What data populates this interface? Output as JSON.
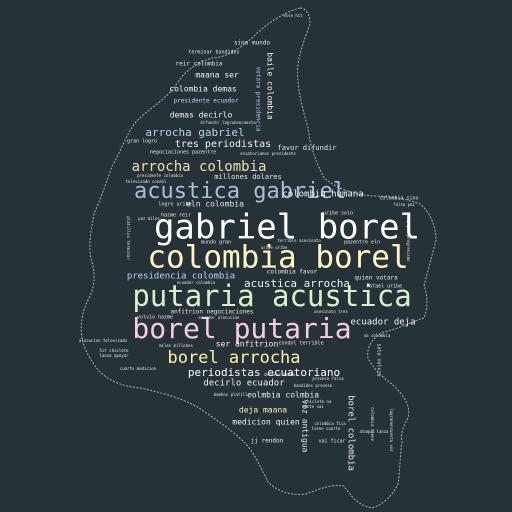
{
  "colors": {
    "background": "#263238",
    "outline": "#a9b4b8"
  },
  "words": [
    {
      "text": "gabriel borel",
      "color": "#ffffff"
    },
    {
      "text": "colombia borel",
      "color": "#fff6c4"
    },
    {
      "text": "putaria acustica",
      "color": "#d6f2c8"
    },
    {
      "text": "borel putaria",
      "color": "#f6cde0"
    },
    {
      "text": "acustica gabriel",
      "color": "#a9bfd4"
    },
    {
      "text": "borel arrocha",
      "color": "#fbf3a6"
    },
    {
      "text": "arrocha colombia",
      "color": "#e9e0b4"
    },
    {
      "text": "arrocha gabriel",
      "color": "#b7d2e6"
    },
    {
      "text": "acustica arrocha",
      "color": "#f1f1f1"
    },
    {
      "text": "presidencia colombia",
      "color": "#b9d8ee"
    },
    {
      "text": "periodistas ecuatoriano",
      "color": "#ffffff"
    },
    {
      "text": "tres periodistas",
      "color": "#f1f1f1"
    },
    {
      "text": "colombia humana",
      "color": "#f3f3f3"
    },
    {
      "text": "eln colombia",
      "color": "#e8e8e8"
    },
    {
      "text": "ser anfitrion",
      "color": "#f3f3f3"
    },
    {
      "text": "ecuador deja",
      "color": "#f3f3f3"
    },
    {
      "text": "decirlo ecuador",
      "color": "#f1f1f1"
    },
    {
      "text": "colmbia colmbia",
      "color": "#f1f1f1"
    },
    {
      "text": "deja maana",
      "color": "#fbefc0"
    },
    {
      "text": "medicion quien",
      "color": "#f3f3f3"
    },
    {
      "text": "colombia demas",
      "color": "#f3f3f3"
    },
    {
      "text": "maana ser",
      "color": "#f3f3f3"
    },
    {
      "text": "demas decirlo",
      "color": "#f3f3f3"
    },
    {
      "text": "baile colombia",
      "color": "#f3f3f3"
    },
    {
      "text": "borel colombia",
      "color": "#e8e8e8"
    },
    {
      "text": "voz antigua",
      "color": "#e8e8e8"
    },
    {
      "text": "favor difundir",
      "color": "#e6e6e6"
    },
    {
      "text": "millones dolares",
      "color": "#e6e6e6"
    },
    {
      "text": "colombia favor",
      "color": "#e6e6e6"
    },
    {
      "text": "quien votara",
      "color": "#e6e6e6"
    },
    {
      "text": "anfitrion negociaciones",
      "color": "#e6e6e6"
    },
    {
      "text": "presidente ecuador",
      "color": "#b7d2e6"
    },
    {
      "text": "sino mundo",
      "color": "#e6e6e6"
    },
    {
      "text": "reir colombia",
      "color": "#e6e6e6"
    },
    {
      "text": "votara presidencia",
      "color": "#b7d2e6"
    },
    {
      "text": "terminar bandidos",
      "color": "#e6e6e6"
    },
    {
      "text": "gran logro",
      "color": "#e6e6e6"
    },
    {
      "text": "logro uribe",
      "color": "#e6e6e6"
    },
    {
      "text": "hazme reir",
      "color": "#e6e6e6"
    },
    {
      "text": "uribe solo",
      "color": "#e6e6e6"
    },
    {
      "text": "colombia sino",
      "color": "#e6e6e6"
    },
    {
      "text": "mundo gran",
      "color": "#e6e6e6"
    },
    {
      "text": "pazentre eln",
      "color": "#e6e6e6"
    },
    {
      "text": "volvio hazme",
      "color": "#e6e6e6"
    },
    {
      "text": "condol terrible",
      "color": "#e6e6e6"
    },
    {
      "text": "solo volvio",
      "color": "#e6e6e6"
    },
    {
      "text": "rafael uribe",
      "color": "#e6e6e6"
    },
    {
      "text": "jj rendon",
      "color": "#e6e6e6"
    },
    {
      "text": "vai ficar",
      "color": "#e6e6e6"
    },
    {
      "text": "esse hit",
      "color": "#e6e6e6"
    },
    {
      "text": "negociaciones pazentre",
      "color": "#e6e6e6"
    },
    {
      "text": "presidente colombia",
      "color": "#e6e6e6"
    },
    {
      "text": "ecuatorianos presidente",
      "color": "#e6e6e6"
    },
    {
      "text": "difundir lagranencuesta",
      "color": "#e6e6e6"
    },
    {
      "text": "televisado condol",
      "color": "#e6e6e6"
    },
    {
      "text": "terrible asesinato",
      "color": "#e6e6e6"
    },
    {
      "text": "uribe uribe",
      "color": "#e6e6e6"
    },
    {
      "text": "paz miles",
      "color": "#e6e6e6"
    },
    {
      "text": "falsa paz",
      "color": "#e6e6e6"
    },
    {
      "text": "apoyar progresismo",
      "color": "#e6e6e6"
    },
    {
      "text": "platillos terminar",
      "color": "#e6e6e6"
    },
    {
      "text": "ecuador colombia",
      "color": "#e6e6e6"
    },
    {
      "text": "ecuador alocucion",
      "color": "#e6e6e6"
    },
    {
      "text": "asesinato tres",
      "color": "#e6e6e6"
    },
    {
      "text": "alocucion televisado",
      "color": "#e6e6e6"
    },
    {
      "text": "hit chiclete",
      "color": "#e6e6e6"
    },
    {
      "text": "lanza apoyar",
      "color": "#e6e6e6"
    },
    {
      "text": "miles millones",
      "color": "#e6e6e6"
    },
    {
      "text": "cuarto medicion",
      "color": "#e6e6e6"
    },
    {
      "text": "proceso falsa",
      "color": "#e6e6e6"
    },
    {
      "text": "bandidos proceso",
      "color": "#e6e6e6"
    },
    {
      "text": "dolares bombos",
      "color": "#e6e6e6"
    },
    {
      "text": "bombos platillos",
      "color": "#e6e6e6"
    },
    {
      "text": "chiclete na",
      "color": "#e6e6e6"
    },
    {
      "text": "mente vai",
      "color": "#e6e6e6"
    },
    {
      "text": "colombia tiene",
      "color": "#e6e6e6"
    },
    {
      "text": "tiene cuarto",
      "color": "#e6e6e6"
    },
    {
      "text": "lagranencuesta voz",
      "color": "#e6e6e6"
    },
    {
      "text": "na colombia",
      "color": "#e6e6e6"
    },
    {
      "text": "colombia fica",
      "color": "#e6e6e6"
    },
    {
      "text": "ataque lanza",
      "color": "#e6e6e6"
    }
  ]
}
